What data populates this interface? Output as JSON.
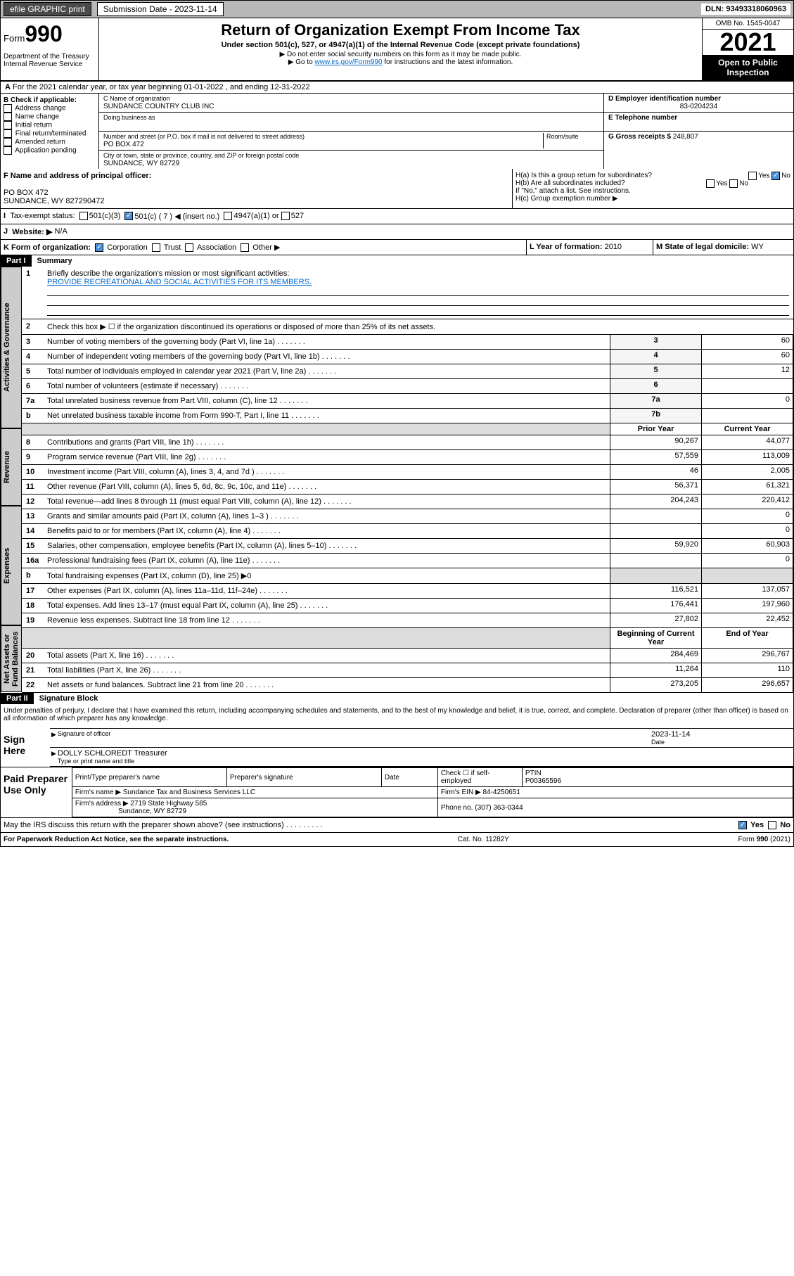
{
  "topbar": {
    "efile": "efile GRAPHIC print",
    "submission_label": "Submission Date - 2023-11-14",
    "dln": "DLN: 93493318060963"
  },
  "header": {
    "form_prefix": "Form",
    "form_num": "990",
    "title": "Return of Organization Exempt From Income Tax",
    "subtitle": "Under section 501(c), 527, or 4947(a)(1) of the Internal Revenue Code (except private foundations)",
    "instr1": "▶ Do not enter social security numbers on this form as it may be made public.",
    "instr2_pre": "▶ Go to ",
    "instr2_link": "www.irs.gov/Form990",
    "instr2_post": " for instructions and the latest information.",
    "dept": "Department of the Treasury\nInternal Revenue Service",
    "omb": "OMB No. 1545-0047",
    "year": "2021",
    "inspect": "Open to Public Inspection"
  },
  "secA": "For the 2021 calendar year, or tax year beginning 01-01-2022   , and ending 12-31-2022",
  "secB": {
    "label": "B Check if applicable:",
    "opts": [
      "Address change",
      "Name change",
      "Initial return",
      "Final return/terminated",
      "Amended return",
      "Application pending"
    ]
  },
  "secC": {
    "name_label": "C Name of organization",
    "name": "SUNDANCE COUNTRY CLUB INC",
    "dba_label": "Doing business as",
    "addr_label": "Number and street (or P.O. box if mail is not delivered to street address)",
    "addr": "PO BOX 472",
    "room_label": "Room/suite",
    "city_label": "City or town, state or province, country, and ZIP or foreign postal code",
    "city": "SUNDANCE, WY  82729"
  },
  "secD": {
    "label": "D Employer identification number",
    "value": "83-0204234"
  },
  "secE": {
    "label": "E Telephone number"
  },
  "secG": {
    "label": "G Gross receipts $",
    "value": "248,807"
  },
  "secF": {
    "label": "F Name and address of principal officer:",
    "addr1": "PO BOX 472",
    "addr2": "SUNDANCE, WY  827290472"
  },
  "secH": {
    "a": "H(a)  Is this a group return for subordinates?",
    "b": "H(b)  Are all subordinates included?",
    "note": "If \"No,\" attach a list. See instructions.",
    "c": "H(c)  Group exemption number ▶",
    "yes": "Yes",
    "no": "No"
  },
  "secI": {
    "label": "Tax-exempt status:",
    "c3": "501(c)(3)",
    "c": "501(c) ( 7 ) ◀ (insert no.)",
    "a1": "4947(a)(1) or",
    "527": "527"
  },
  "secJ": {
    "label": "Website: ▶",
    "value": "N/A"
  },
  "secK": {
    "label": "K Form of organization:",
    "corp": "Corporation",
    "trust": "Trust",
    "assoc": "Association",
    "other": "Other ▶"
  },
  "secL": {
    "label": "L Year of formation:",
    "value": "2010"
  },
  "secM": {
    "label": "M State of legal domicile:",
    "value": "WY"
  },
  "part1": {
    "header": "Part I",
    "title": "Summary",
    "vert_labels": [
      "Activities & Governance",
      "Revenue",
      "Expenses",
      "Net Assets or Fund Balances"
    ],
    "line1_label": "Briefly describe the organization's mission or most significant activities:",
    "line1_text": "PROVIDE RECREATIONAL AND SOCIAL ACTIVITIES FOR ITS MEMBERS.",
    "line2": "Check this box ▶ ☐  if the organization discontinued its operations or disposed of more than 25% of its net assets.",
    "lines_gov": [
      {
        "n": "3",
        "t": "Number of voting members of the governing body (Part VI, line 1a)",
        "box": "3",
        "v": "60"
      },
      {
        "n": "4",
        "t": "Number of independent voting members of the governing body (Part VI, line 1b)",
        "box": "4",
        "v": "60"
      },
      {
        "n": "5",
        "t": "Total number of individuals employed in calendar year 2021 (Part V, line 2a)",
        "box": "5",
        "v": "12"
      },
      {
        "n": "6",
        "t": "Total number of volunteers (estimate if necessary)",
        "box": "6",
        "v": ""
      },
      {
        "n": "7a",
        "t": "Total unrelated business revenue from Part VIII, column (C), line 12",
        "box": "7a",
        "v": "0"
      },
      {
        "n": "b",
        "t": "Net unrelated business taxable income from Form 990-T, Part I, line 11",
        "box": "7b",
        "v": ""
      }
    ],
    "col_prior": "Prior Year",
    "col_current": "Current Year",
    "lines_rev": [
      {
        "n": "8",
        "t": "Contributions and grants (Part VIII, line 1h)",
        "p": "90,267",
        "c": "44,077"
      },
      {
        "n": "9",
        "t": "Program service revenue (Part VIII, line 2g)",
        "p": "57,559",
        "c": "113,009"
      },
      {
        "n": "10",
        "t": "Investment income (Part VIII, column (A), lines 3, 4, and 7d )",
        "p": "46",
        "c": "2,005"
      },
      {
        "n": "11",
        "t": "Other revenue (Part VIII, column (A), lines 5, 6d, 8c, 9c, 10c, and 11e)",
        "p": "56,371",
        "c": "61,321"
      },
      {
        "n": "12",
        "t": "Total revenue—add lines 8 through 11 (must equal Part VIII, column (A), line 12)",
        "p": "204,243",
        "c": "220,412"
      }
    ],
    "lines_exp": [
      {
        "n": "13",
        "t": "Grants and similar amounts paid (Part IX, column (A), lines 1–3 )",
        "p": "",
        "c": "0"
      },
      {
        "n": "14",
        "t": "Benefits paid to or for members (Part IX, column (A), line 4)",
        "p": "",
        "c": "0"
      },
      {
        "n": "15",
        "t": "Salaries, other compensation, employee benefits (Part IX, column (A), lines 5–10)",
        "p": "59,920",
        "c": "60,903"
      },
      {
        "n": "16a",
        "t": "Professional fundraising fees (Part IX, column (A), line 11e)",
        "p": "",
        "c": "0"
      },
      {
        "n": "b",
        "t": "Total fundraising expenses (Part IX, column (D), line 25) ▶0",
        "p": "",
        "c": "",
        "shaded": true
      },
      {
        "n": "17",
        "t": "Other expenses (Part IX, column (A), lines 11a–11d, 11f–24e)",
        "p": "116,521",
        "c": "137,057"
      },
      {
        "n": "18",
        "t": "Total expenses. Add lines 13–17 (must equal Part IX, column (A), line 25)",
        "p": "176,441",
        "c": "197,960"
      },
      {
        "n": "19",
        "t": "Revenue less expenses. Subtract line 18 from line 12",
        "p": "27,802",
        "c": "22,452"
      }
    ],
    "col_begin": "Beginning of Current Year",
    "col_end": "End of Year",
    "lines_net": [
      {
        "n": "20",
        "t": "Total assets (Part X, line 16)",
        "p": "284,469",
        "c": "296,767"
      },
      {
        "n": "21",
        "t": "Total liabilities (Part X, line 26)",
        "p": "11,264",
        "c": "110"
      },
      {
        "n": "22",
        "t": "Net assets or fund balances. Subtract line 21 from line 20",
        "p": "273,205",
        "c": "296,657"
      }
    ]
  },
  "part2": {
    "header": "Part II",
    "title": "Signature Block",
    "decl": "Under penalties of perjury, I declare that I have examined this return, including accompanying schedules and statements, and to the best of my knowledge and belief, it is true, correct, and complete. Declaration of preparer (other than officer) is based on all information of which preparer has any knowledge.",
    "sign_here": "Sign Here",
    "sig_officer": "Signature of officer",
    "date_label": "Date",
    "date_val": "2023-11-14",
    "officer_name": "DOLLY SCHLOREDT Treasurer",
    "type_name": "Type or print name and title",
    "paid_prep": "Paid Preparer Use Only",
    "prep_name_label": "Print/Type preparer's name",
    "prep_sig_label": "Preparer's signature",
    "check_self": "Check ☐ if self-employed",
    "ptin_label": "PTIN",
    "ptin": "P00365596",
    "firm_name_label": "Firm's name    ▶",
    "firm_name": "Sundance Tax and Business Services LLC",
    "firm_ein_label": "Firm's EIN ▶",
    "firm_ein": "84-4250651",
    "firm_addr_label": "Firm's address ▶",
    "firm_addr1": "2719 State Highway 585",
    "firm_addr2": "Sundance, WY  82729",
    "phone_label": "Phone no.",
    "phone": "(307) 363-0344",
    "discuss": "May the IRS discuss this return with the preparer shown above? (see instructions)"
  },
  "footer": {
    "left": "For Paperwork Reduction Act Notice, see the separate instructions.",
    "mid": "Cat. No. 11282Y",
    "right": "Form 990 (2021)"
  }
}
